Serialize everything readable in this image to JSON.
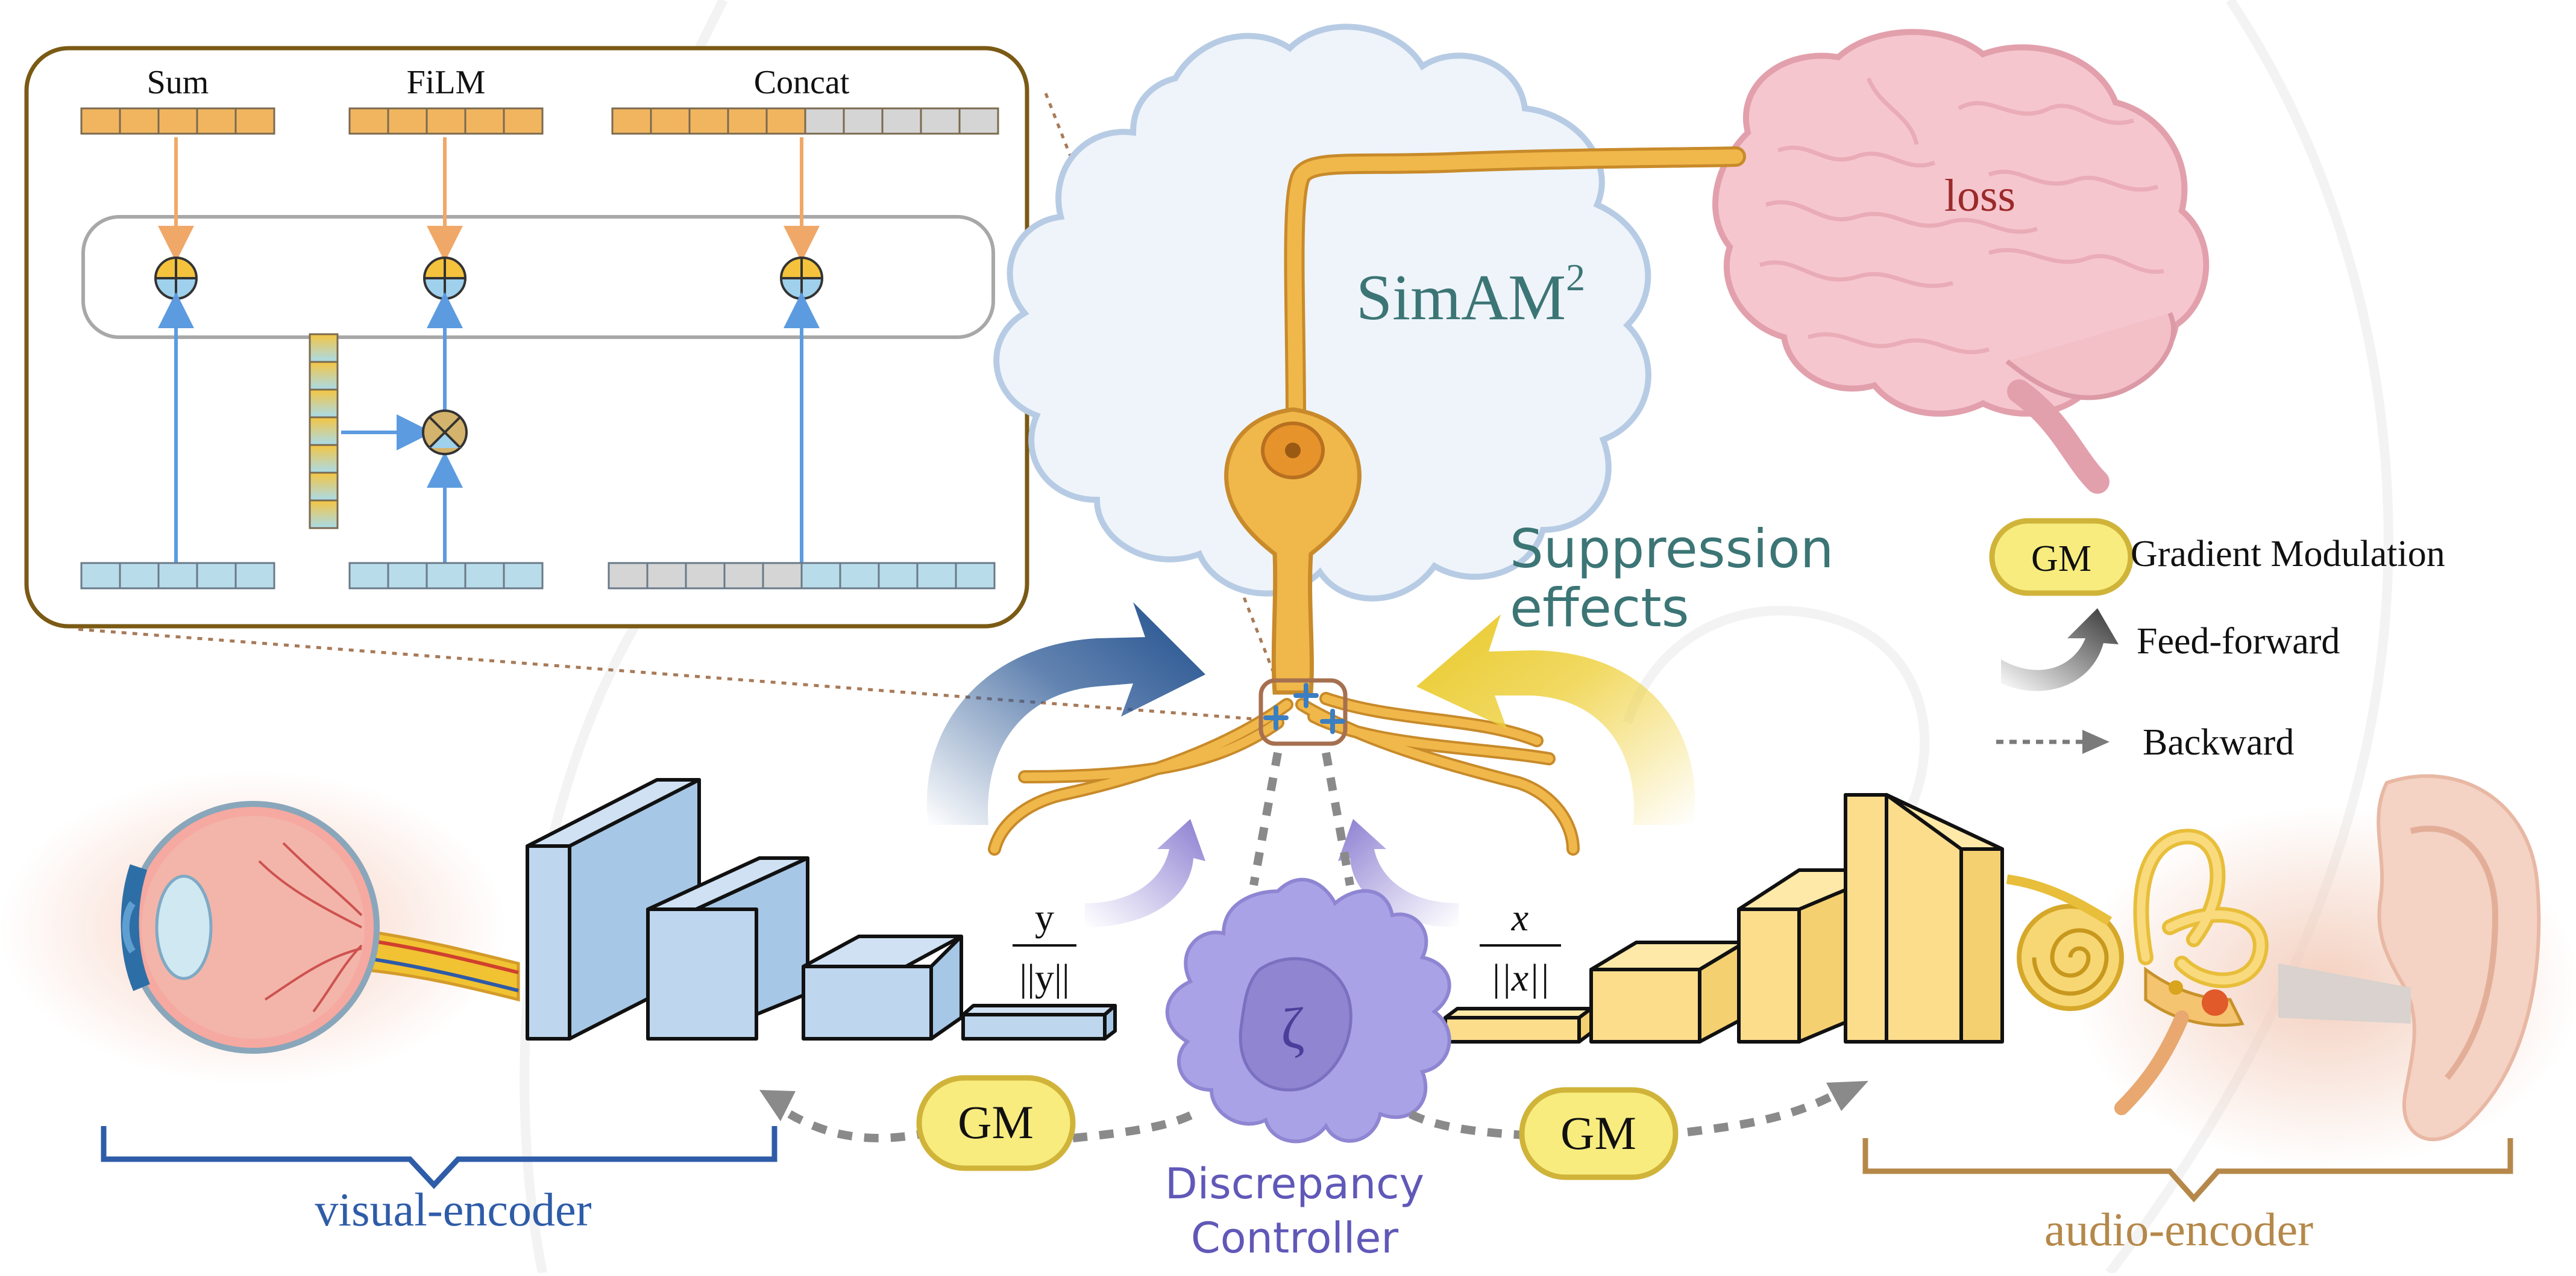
{
  "inset": {
    "methods": [
      "Sum",
      "FiLM",
      "Concat"
    ]
  },
  "neuron": {
    "title": "SimAM",
    "superscript": "2"
  },
  "brain": {
    "label": "loss"
  },
  "suppression": {
    "line1": "Suppression",
    "line2": "effects"
  },
  "legend": {
    "gm_badge": "GM",
    "gm_text": "Gradient Modulation",
    "feedforward_text": "Feed-forward",
    "backward_text": "Backward"
  },
  "visual": {
    "norm_num": "y",
    "norm_den": "||y||",
    "label": "visual-encoder"
  },
  "audio": {
    "norm_num": "x",
    "norm_den": "||x||",
    "label": "audio-encoder"
  },
  "controller": {
    "symbol": "ζ",
    "line1": "Discrepancy",
    "line2": "Controller"
  },
  "gm_left": "GM",
  "gm_right": "GM",
  "colors": {
    "orange": "#F2B55F",
    "light_blue": "#B9DCEA",
    "gray": "#D5D5D5",
    "visual_blue": "#2E5CA8",
    "audio_brown": "#B5884A",
    "neuron_gold": "#F0B84A",
    "simam_teal": "#3C7575",
    "controller_purple": "#A9A2E6",
    "gm_yellow": "#F8EC7E"
  }
}
